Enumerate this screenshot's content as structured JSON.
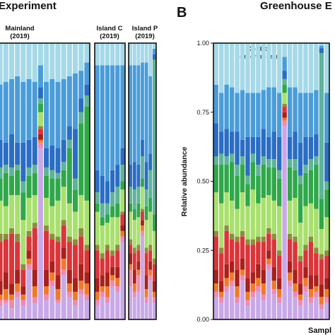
{
  "panel_a": {
    "title": "Experiment",
    "groups": [
      {
        "line1": "Mainland",
        "line2": "(2019)"
      },
      {
        "line1": "Island C",
        "line2": "(2019)"
      },
      {
        "line1": "Island P",
        "line2": "(2019)"
      }
    ]
  },
  "panel_b": {
    "letter": "B",
    "title": "Greenhouse E",
    "group_line1": "Control",
    "group_line2": "greenhouse",
    "ylabel": "Relative abundance",
    "xlabel": "Sampl"
  },
  "colors": {
    "lightblue": "#a6d9e8",
    "blue": "#4a9cd9",
    "darkblue": "#2a6dc4",
    "teal": "#5fb39a",
    "green": "#2fa84a",
    "lime": "#a8e06c",
    "olive": "#8a8f3a",
    "red": "#d9353a",
    "darkred": "#a8201c",
    "orange": "#f07a2a",
    "pink": "#f08ab0",
    "lavender": "#c9a8e8"
  },
  "chart_data": [
    {
      "type": "bar",
      "stacked": true,
      "panel": "A",
      "ylim": [
        0,
        1
      ],
      "series_order": [
        "lavender",
        "pink",
        "orange",
        "darkred",
        "red",
        "olive",
        "lime",
        "green",
        "teal",
        "darkblue",
        "blue",
        "lightblue"
      ],
      "groups": [
        {
          "name": "Mainland (2019)",
          "samples": [
            [
              0.05,
              0.02,
              0.02,
              0.05,
              0.14,
              0.03,
              0.12,
              0.08,
              0.04,
              0.1,
              0.2,
              0.15
            ],
            [
              0.06,
              0.01,
              0.04,
              0.06,
              0.12,
              0.02,
              0.1,
              0.12,
              0.03,
              0.08,
              0.22,
              0.14
            ],
            [
              0.04,
              0.03,
              0.02,
              0.04,
              0.18,
              0.02,
              0.12,
              0.07,
              0.03,
              0.12,
              0.2,
              0.13
            ],
            [
              0.08,
              0.02,
              0.03,
              0.05,
              0.1,
              0.03,
              0.14,
              0.09,
              0.02,
              0.08,
              0.24,
              0.12
            ],
            [
              0.05,
              0.02,
              0.02,
              0.03,
              0.06,
              0.02,
              0.16,
              0.1,
              0.04,
              0.14,
              0.22,
              0.14
            ],
            [
              0.18,
              0.02,
              0.02,
              0.03,
              0.05,
              0.02,
              0.12,
              0.08,
              0.03,
              0.1,
              0.22,
              0.13
            ],
            [
              0.06,
              0.02,
              0.04,
              0.06,
              0.15,
              0.02,
              0.1,
              0.08,
              0.03,
              0.1,
              0.2,
              0.14
            ],
            [
              0.62,
              0.02,
              0.01,
              0.02,
              0.02,
              0.01,
              0.05,
              0.03,
              0.02,
              0.04,
              0.08,
              0.08
            ],
            [
              0.07,
              0.02,
              0.03,
              0.06,
              0.14,
              0.02,
              0.1,
              0.08,
              0.03,
              0.07,
              0.24,
              0.14
            ],
            [
              0.12,
              0.02,
              0.03,
              0.04,
              0.08,
              0.02,
              0.1,
              0.1,
              0.03,
              0.09,
              0.24,
              0.13
            ],
            [
              0.06,
              0.01,
              0.04,
              0.05,
              0.12,
              0.02,
              0.13,
              0.08,
              0.02,
              0.09,
              0.24,
              0.14
            ],
            [
              0.16,
              0.02,
              0.04,
              0.04,
              0.08,
              0.02,
              0.12,
              0.06,
              0.03,
              0.08,
              0.22,
              0.13
            ],
            [
              0.08,
              0.02,
              0.03,
              0.05,
              0.1,
              0.02,
              0.12,
              0.2,
              0.03,
              0.05,
              0.18,
              0.12
            ],
            [
              0.05,
              0.02,
              0.03,
              0.05,
              0.12,
              0.02,
              0.1,
              0.08,
              0.04,
              0.18,
              0.2,
              0.11
            ],
            [
              0.09,
              0.02,
              0.03,
              0.06,
              0.1,
              0.03,
              0.12,
              0.26,
              0.04,
              0.05,
              0.1,
              0.1
            ],
            [
              0.07,
              0.02,
              0.04,
              0.04,
              0.08,
              0.02,
              0.16,
              0.34,
              0.04,
              0.04,
              0.08,
              0.07
            ]
          ]
        },
        {
          "name": "Island C (2019)",
          "samples": [
            [
              0.05,
              0.02,
              0.03,
              0.05,
              0.1,
              0.02,
              0.12,
              0.03,
              0.04,
              0.08,
              0.38,
              0.08
            ],
            [
              0.08,
              0.02,
              0.02,
              0.04,
              0.06,
              0.02,
              0.1,
              0.03,
              0.05,
              0.1,
              0.4,
              0.08
            ],
            [
              0.06,
              0.02,
              0.04,
              0.05,
              0.08,
              0.02,
              0.08,
              0.03,
              0.04,
              0.08,
              0.42,
              0.08
            ],
            [
              0.12,
              0.02,
              0.02,
              0.03,
              0.04,
              0.02,
              0.12,
              0.04,
              0.05,
              0.08,
              0.38,
              0.08
            ],
            [
              0.1,
              0.02,
              0.03,
              0.04,
              0.06,
              0.02,
              0.1,
              0.05,
              0.06,
              0.08,
              0.36,
              0.08
            ],
            [
              0.28,
              0.02,
              0.02,
              0.02,
              0.04,
              0.01,
              0.08,
              0.03,
              0.06,
              0.06,
              0.3,
              0.08
            ]
          ]
        },
        {
          "name": "Island P (2019)",
          "samples": [
            [
              0.12,
              0.06,
              0.02,
              0.04,
              0.03,
              0.02,
              0.1,
              0.03,
              0.06,
              0.08,
              0.36,
              0.08
            ],
            [
              0.08,
              0.02,
              0.03,
              0.05,
              0.06,
              0.02,
              0.1,
              0.04,
              0.07,
              0.1,
              0.35,
              0.08
            ],
            [
              0.1,
              0.06,
              0.02,
              0.03,
              0.04,
              0.02,
              0.1,
              0.05,
              0.06,
              0.08,
              0.36,
              0.08
            ],
            [
              0.3,
              0.02,
              0.02,
              0.02,
              0.03,
              0.01,
              0.08,
              0.03,
              0.08,
              0.06,
              0.28,
              0.07
            ],
            [
              0.06,
              0.02,
              0.03,
              0.05,
              0.08,
              0.02,
              0.1,
              0.05,
              0.06,
              0.1,
              0.36,
              0.07
            ],
            [
              0.14,
              0.02,
              0.02,
              0.03,
              0.04,
              0.02,
              0.12,
              0.05,
              0.1,
              0.06,
              0.28,
              0.12
            ],
            [
              0.06,
              0.02,
              0.02,
              0.04,
              0.06,
              0.02,
              0.1,
              0.06,
              0.56,
              0.02,
              0.02,
              0.02
            ]
          ]
        }
      ]
    },
    {
      "type": "bar",
      "stacked": true,
      "panel": "B",
      "ylim": [
        0,
        1
      ],
      "yticks": [
        0.0,
        0.25,
        0.5,
        0.75,
        1.0
      ],
      "ytick_labels": [
        "0.00",
        "0.25",
        "0.50",
        "0.75",
        "1.00"
      ],
      "series_order": [
        "lavender",
        "pink",
        "orange",
        "darkred",
        "red",
        "olive",
        "lime",
        "green",
        "teal",
        "darkblue",
        "blue",
        "lightblue"
      ],
      "groups": [
        {
          "name": "Control greenhouse",
          "samples": [
            [
              0.08,
              0.02,
              0.03,
              0.05,
              0.12,
              0.02,
              0.14,
              0.1,
              0.03,
              0.12,
              0.14,
              0.15
            ],
            [
              0.06,
              0.02,
              0.02,
              0.04,
              0.1,
              0.02,
              0.16,
              0.14,
              0.04,
              0.08,
              0.14,
              0.18
            ],
            [
              0.1,
              0.02,
              0.03,
              0.05,
              0.12,
              0.02,
              0.12,
              0.1,
              0.03,
              0.1,
              0.16,
              0.15
            ],
            [
              0.12,
              0.02,
              0.03,
              0.04,
              0.08,
              0.02,
              0.12,
              0.14,
              0.03,
              0.08,
              0.16,
              0.16
            ],
            [
              0.06,
              0.02,
              0.04,
              0.06,
              0.1,
              0.02,
              0.1,
              0.12,
              0.04,
              0.12,
              0.14,
              0.18
            ],
            [
              0.14,
              0.02,
              0.02,
              0.04,
              0.08,
              0.02,
              0.14,
              0.1,
              0.03,
              0.06,
              0.18,
              0.17
            ],
            [
              0.05,
              0.02,
              0.03,
              0.05,
              0.12,
              0.02,
              0.12,
              0.08,
              0.03,
              0.14,
              0.16,
              0.18
            ],
            [
              0.08,
              0.02,
              0.03,
              0.04,
              0.1,
              0.02,
              0.18,
              0.1,
              0.03,
              0.06,
              0.16,
              0.18
            ],
            [
              0.1,
              0.02,
              0.03,
              0.05,
              0.08,
              0.02,
              0.12,
              0.1,
              0.04,
              0.1,
              0.16,
              0.18
            ],
            [
              0.07,
              0.02,
              0.04,
              0.05,
              0.1,
              0.02,
              0.14,
              0.12,
              0.03,
              0.1,
              0.14,
              0.17
            ],
            [
              0.18,
              0.02,
              0.02,
              0.03,
              0.06,
              0.02,
              0.12,
              0.1,
              0.03,
              0.08,
              0.18,
              0.16
            ],
            [
              0.09,
              0.02,
              0.03,
              0.05,
              0.1,
              0.02,
              0.12,
              0.12,
              0.03,
              0.1,
              0.16,
              0.16
            ],
            [
              0.06,
              0.02,
              0.03,
              0.04,
              0.08,
              0.02,
              0.16,
              0.1,
              0.03,
              0.12,
              0.16,
              0.18
            ],
            [
              0.7,
              0.02,
              0.01,
              0.02,
              0.02,
              0.01,
              0.04,
              0.03,
              0.02,
              0.03,
              0.05,
              0.05
            ],
            [
              0.12,
              0.02,
              0.03,
              0.04,
              0.08,
              0.02,
              0.12,
              0.12,
              0.03,
              0.08,
              0.18,
              0.16
            ],
            [
              0.08,
              0.02,
              0.03,
              0.05,
              0.1,
              0.02,
              0.14,
              0.1,
              0.04,
              0.1,
              0.16,
              0.16
            ],
            [
              0.05,
              0.02,
              0.02,
              0.04,
              0.08,
              0.02,
              0.12,
              0.14,
              0.03,
              0.12,
              0.18,
              0.18
            ],
            [
              0.1,
              0.02,
              0.03,
              0.04,
              0.06,
              0.02,
              0.14,
              0.12,
              0.03,
              0.1,
              0.16,
              0.18
            ],
            [
              0.06,
              0.02,
              0.03,
              0.05,
              0.12,
              0.02,
              0.12,
              0.12,
              0.04,
              0.08,
              0.16,
              0.18
            ],
            [
              0.08,
              0.02,
              0.02,
              0.04,
              0.08,
              0.02,
              0.14,
              0.16,
              0.03,
              0.08,
              0.16,
              0.17
            ],
            [
              0.04,
              0.02,
              0.03,
              0.05,
              0.1,
              0.02,
              0.1,
              0.12,
              0.58,
              0.02,
              0.01,
              0.01
            ],
            [
              0.06,
              0.02,
              0.03,
              0.04,
              0.08,
              0.02,
              0.12,
              0.1,
              0.03,
              0.14,
              0.18,
              0.18
            ]
          ]
        }
      ]
    }
  ]
}
